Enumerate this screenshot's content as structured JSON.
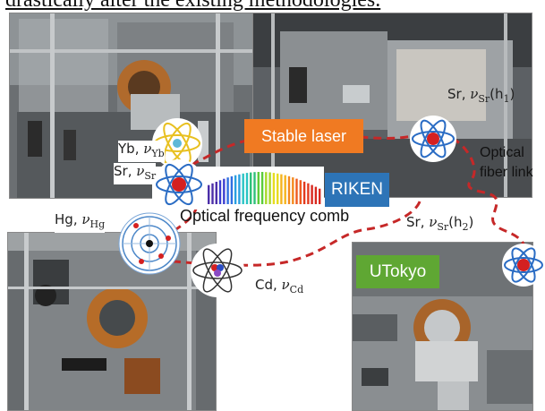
{
  "page": {
    "top_text": "drastically alter the existing methodologies."
  },
  "boxes": {
    "stable_laser": "Stable laser",
    "riken": "RIKEN",
    "utokyo": "UTokyo"
  },
  "comb": {
    "label": "Optical frequency comb",
    "bar_colors": [
      "#4b2ea8",
      "#3d3fd0",
      "#2f6fe0",
      "#2aa0e0",
      "#2ac4c4",
      "#2fc07a",
      "#5ccc3a",
      "#a8d82a",
      "#e6dc20",
      "#f5b41e",
      "#f48a1e",
      "#ee5a1e",
      "#e33a1e",
      "#d8281e"
    ]
  },
  "fiber": {
    "label_line1": "Optical",
    "label_line2": "fiber link",
    "color": "#c62828"
  },
  "labels": {
    "yb": {
      "element": "Yb",
      "sym": "ν",
      "sub": "Yb"
    },
    "sr": {
      "element": "Sr",
      "sym": "ν",
      "sub": "Sr"
    },
    "hg": {
      "element": "Hg",
      "sym": "ν",
      "sub": "Hg"
    },
    "cd": {
      "element": "Cd",
      "sym": "ν",
      "sub": "Cd"
    },
    "sr_h1": {
      "element": "Sr",
      "sym": "ν",
      "sub": "Sr",
      "arg": "(h",
      "argsub": "1",
      "close": ")"
    },
    "sr_h2": {
      "element": "Sr",
      "sym": "ν",
      "sub": "Sr",
      "arg": "(h",
      "argsub": "2",
      "close": ")"
    }
  },
  "colors": {
    "atom_orbit": "#2a6cc4",
    "nucleus": "#d42020",
    "yb_orbit": "#e8c020"
  }
}
